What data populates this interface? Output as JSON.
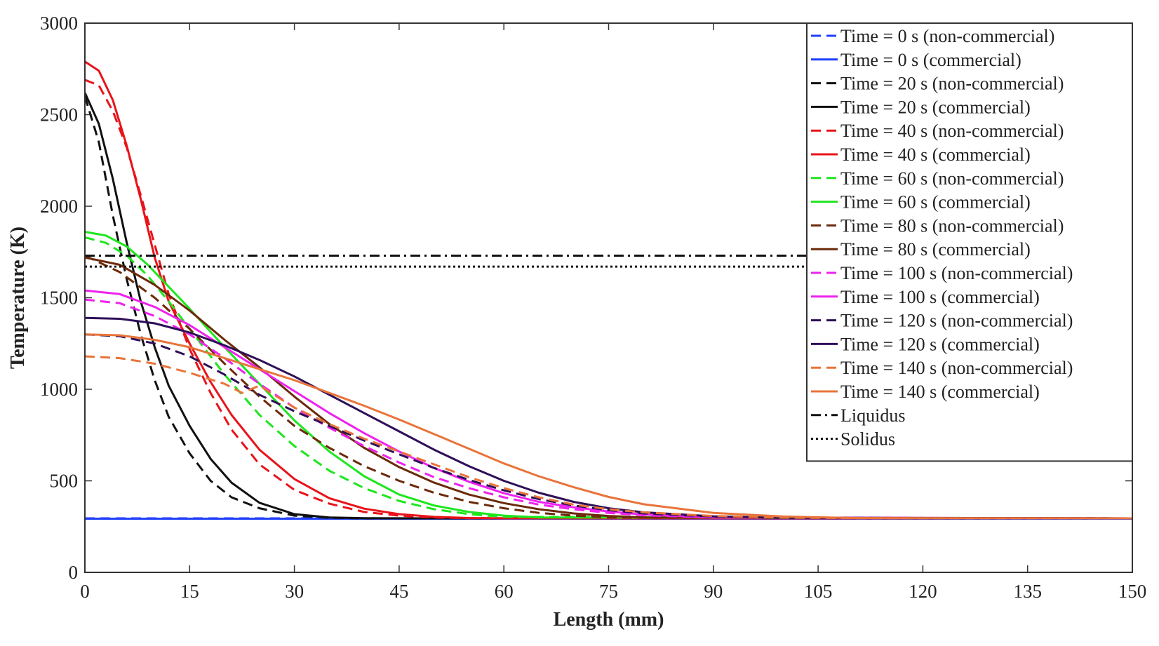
{
  "chart_data": {
    "type": "line",
    "title": "",
    "xlabel": "Length  (mm)",
    "ylabel": "Temperature (K)",
    "xlim": [
      0,
      150
    ],
    "ylim": [
      0,
      3000
    ],
    "xticks": [
      0,
      15,
      30,
      45,
      60,
      75,
      90,
      105,
      120,
      135,
      150
    ],
    "yticks": [
      0,
      500,
      1000,
      1500,
      2000,
      2500,
      3000
    ],
    "xtick_labels": [
      "0",
      "15",
      "30",
      "45",
      "60",
      "75",
      "90",
      "105",
      "120",
      "135",
      "150"
    ],
    "ytick_labels": [
      "0",
      "500",
      "1000",
      "1500",
      "2000",
      "2500",
      "3000"
    ],
    "grid": false,
    "legend_position": "top-right",
    "series": [
      {
        "name": "Time = 0 s  (non-commercial)",
        "color": "#1f3fff",
        "dash": "dashed",
        "x": [
          0,
          30,
          60,
          90,
          120,
          150
        ],
        "y": [
          295,
          295,
          295,
          295,
          295,
          295
        ]
      },
      {
        "name": "Time = 0 s  (commercial)",
        "color": "#1f3fff",
        "dash": "solid",
        "x": [
          0,
          30,
          60,
          90,
          120,
          150
        ],
        "y": [
          293,
          293,
          293,
          293,
          293,
          293
        ]
      },
      {
        "name": "Time = 20 s  (non-commercial)",
        "color": "#111111",
        "dash": "dashed",
        "x": [
          0,
          2,
          4,
          6,
          8,
          10,
          12,
          15,
          18,
          21,
          25,
          30,
          35,
          40,
          50,
          150
        ],
        "y": [
          2600,
          2350,
          1950,
          1600,
          1300,
          1050,
          850,
          650,
          500,
          410,
          350,
          310,
          298,
          295,
          295,
          295
        ]
      },
      {
        "name": "Time = 20 s  (commercial)",
        "color": "#111111",
        "dash": "solid",
        "x": [
          0,
          2,
          4,
          6,
          8,
          10,
          12,
          15,
          18,
          21,
          25,
          30,
          35,
          40,
          50,
          150
        ],
        "y": [
          2620,
          2450,
          2150,
          1800,
          1480,
          1230,
          1020,
          800,
          620,
          490,
          380,
          318,
          300,
          296,
          295,
          295
        ]
      },
      {
        "name": "Time = 40 s  (non-commercial)",
        "color": "#e8141a",
        "dash": "dashed",
        "x": [
          0,
          2,
          4,
          6,
          8,
          10,
          12,
          15,
          18,
          21,
          25,
          30,
          35,
          40,
          45,
          50,
          55,
          150
        ],
        "y": [
          2690,
          2660,
          2520,
          2320,
          2060,
          1790,
          1520,
          1220,
          980,
          780,
          590,
          450,
          375,
          330,
          310,
          300,
          296,
          295
        ]
      },
      {
        "name": "Time = 40 s  (commercial)",
        "color": "#e8141a",
        "dash": "solid",
        "x": [
          0,
          2,
          4,
          6,
          8,
          10,
          12,
          15,
          18,
          21,
          25,
          30,
          35,
          40,
          45,
          50,
          55,
          60,
          150
        ],
        "y": [
          2790,
          2740,
          2580,
          2330,
          2040,
          1720,
          1480,
          1250,
          1040,
          860,
          670,
          510,
          405,
          348,
          318,
          303,
          297,
          295,
          295
        ]
      },
      {
        "name": "Time = 60 s  (non-commercial)",
        "color": "#1ee61e",
        "dash": "dashed",
        "x": [
          0,
          3,
          6,
          9,
          12,
          15,
          20,
          25,
          30,
          35,
          40,
          45,
          50,
          55,
          60,
          150
        ],
        "y": [
          1830,
          1800,
          1730,
          1620,
          1480,
          1330,
          1080,
          860,
          690,
          555,
          460,
          390,
          345,
          318,
          303,
          295
        ]
      },
      {
        "name": "Time = 60 s  (commercial)",
        "color": "#1ee61e",
        "dash": "solid",
        "x": [
          0,
          3,
          6,
          9,
          12,
          15,
          20,
          25,
          30,
          35,
          40,
          45,
          50,
          55,
          60,
          65,
          150
        ],
        "y": [
          1860,
          1840,
          1780,
          1680,
          1560,
          1440,
          1230,
          1030,
          830,
          660,
          525,
          425,
          365,
          330,
          310,
          300,
          295
        ]
      },
      {
        "name": "Time = 80 s  (non-commercial)",
        "color": "#6b2a0a",
        "dash": "dashed",
        "x": [
          0,
          5,
          10,
          15,
          20,
          25,
          30,
          35,
          40,
          45,
          50,
          55,
          60,
          65,
          70,
          75,
          150
        ],
        "y": [
          1730,
          1640,
          1500,
          1330,
          1140,
          960,
          800,
          680,
          580,
          500,
          435,
          385,
          350,
          325,
          310,
          300,
          295
        ]
      },
      {
        "name": "Time = 80 s  (commercial)",
        "color": "#6b2a0a",
        "dash": "solid",
        "x": [
          0,
          5,
          10,
          15,
          20,
          25,
          30,
          35,
          40,
          45,
          50,
          55,
          60,
          65,
          70,
          75,
          80,
          150
        ],
        "y": [
          1720,
          1680,
          1570,
          1430,
          1270,
          1120,
          960,
          810,
          680,
          575,
          490,
          425,
          378,
          345,
          322,
          308,
          300,
          295
        ]
      },
      {
        "name": "Time = 100 s  (non-commercial)",
        "color": "#ee22ee",
        "dash": "dashed",
        "x": [
          0,
          5,
          10,
          15,
          20,
          25,
          30,
          35,
          40,
          45,
          50,
          55,
          60,
          65,
          70,
          75,
          80,
          90,
          150
        ],
        "y": [
          1490,
          1470,
          1400,
          1300,
          1170,
          1030,
          900,
          790,
          690,
          600,
          520,
          460,
          410,
          370,
          345,
          325,
          312,
          300,
          295
        ]
      },
      {
        "name": "Time = 100 s  (commercial)",
        "color": "#ee22ee",
        "dash": "solid",
        "x": [
          0,
          5,
          10,
          15,
          20,
          25,
          30,
          35,
          40,
          45,
          50,
          55,
          60,
          65,
          70,
          75,
          80,
          90,
          150
        ],
        "y": [
          1540,
          1520,
          1450,
          1350,
          1230,
          1110,
          990,
          870,
          760,
          660,
          570,
          495,
          432,
          385,
          355,
          332,
          316,
          300,
          295
        ]
      },
      {
        "name": "Time = 120 s  (non-commercial)",
        "color": "#2e0f58",
        "dash": "dashed",
        "x": [
          0,
          5,
          10,
          15,
          20,
          25,
          30,
          35,
          40,
          45,
          50,
          55,
          60,
          65,
          70,
          75,
          80,
          90,
          100,
          150
        ],
        "y": [
          1300,
          1290,
          1250,
          1180,
          1080,
          970,
          880,
          800,
          720,
          645,
          570,
          505,
          448,
          400,
          365,
          340,
          322,
          305,
          298,
          295
        ]
      },
      {
        "name": "Time = 120 s  (commercial)",
        "color": "#2e0f58",
        "dash": "solid",
        "x": [
          0,
          5,
          10,
          15,
          20,
          25,
          30,
          35,
          40,
          45,
          50,
          55,
          60,
          65,
          70,
          75,
          80,
          90,
          100,
          150
        ],
        "y": [
          1390,
          1385,
          1360,
          1310,
          1240,
          1160,
          1070,
          970,
          870,
          770,
          670,
          580,
          500,
          435,
          385,
          350,
          328,
          306,
          298,
          295
        ]
      },
      {
        "name": "Time = 140 s  (non-commercial)",
        "color": "#e8743a",
        "dash": "dashed",
        "x": [
          0,
          5,
          10,
          15,
          20,
          22.5,
          25,
          30,
          35,
          40,
          45,
          50,
          55,
          60,
          65,
          70,
          75,
          80,
          90,
          100,
          110,
          150
        ],
        "y": [
          1180,
          1170,
          1140,
          1090,
          1030,
          980,
          1020,
          900,
          810,
          730,
          660,
          590,
          520,
          460,
          410,
          370,
          345,
          328,
          308,
          299,
          296,
          295
        ]
      },
      {
        "name": "Time = 140 s  (commercial)",
        "color": "#e8743a",
        "dash": "solid",
        "x": [
          0,
          5,
          10,
          15,
          20,
          25,
          30,
          35,
          40,
          45,
          50,
          55,
          60,
          65,
          70,
          75,
          80,
          90,
          100,
          110,
          150
        ],
        "y": [
          1300,
          1295,
          1270,
          1230,
          1170,
          1110,
          1050,
          980,
          910,
          835,
          755,
          675,
          595,
          525,
          465,
          412,
          372,
          325,
          305,
          297,
          295
        ]
      },
      {
        "name": "Liquidus",
        "color": "#111111",
        "dash": "dashdot",
        "x": [
          0,
          150
        ],
        "y": [
          1730,
          1730
        ]
      },
      {
        "name": "Solidus",
        "color": "#111111",
        "dash": "dotted",
        "x": [
          0,
          150
        ],
        "y": [
          1670,
          1670
        ]
      }
    ]
  }
}
